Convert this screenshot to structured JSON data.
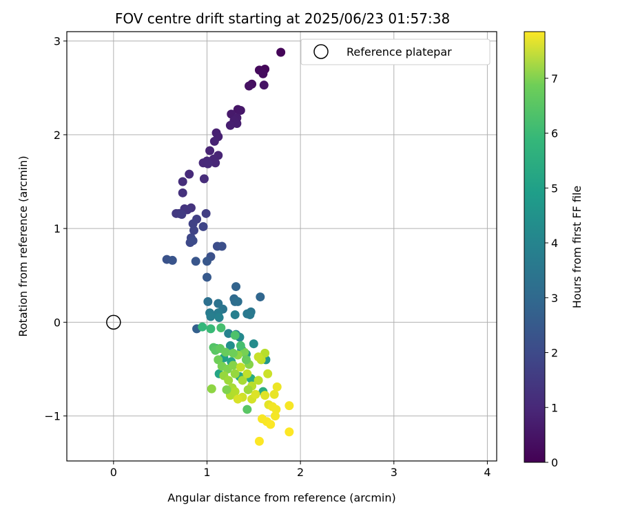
{
  "chart_data": {
    "type": "scatter",
    "title": "FOV centre drift starting at 2025/06/23 01:57:38",
    "xlabel": "Angular distance from reference (arcmin)",
    "ylabel": "Rotation from reference (arcmin)",
    "xlim": [
      -0.5,
      4.1
    ],
    "ylim": [
      -1.48,
      3.1
    ],
    "xticks": [
      0,
      1,
      2,
      3,
      4
    ],
    "yticks": [
      -1,
      0,
      1,
      2,
      3
    ],
    "xtick_labels": [
      "0",
      "1",
      "2",
      "3",
      "4"
    ],
    "ytick_labels": [
      "−1",
      "0",
      "1",
      "2",
      "3"
    ],
    "grid": true,
    "colormap": "viridis",
    "colorbar": {
      "label": "Hours from first FF file",
      "range": [
        0,
        7.85
      ],
      "ticks": [
        0,
        1,
        2,
        3,
        4,
        5,
        6,
        7
      ],
      "tick_labels": [
        "0",
        "1",
        "2",
        "3",
        "4",
        "5",
        "6",
        "7"
      ]
    },
    "legend": {
      "position": "top-right",
      "entries": [
        {
          "label": "Reference platepar",
          "marker": "open-circle"
        }
      ]
    },
    "reference_point": {
      "x": 0,
      "y": 0
    },
    "points": [
      {
        "x": 1.79,
        "y": 2.88,
        "h": 0.1
      },
      {
        "x": 1.62,
        "y": 2.7,
        "h": 0.15
      },
      {
        "x": 1.56,
        "y": 2.69,
        "h": 0.2
      },
      {
        "x": 1.6,
        "y": 2.65,
        "h": 0.25
      },
      {
        "x": 1.48,
        "y": 2.54,
        "h": 0.3
      },
      {
        "x": 1.45,
        "y": 2.52,
        "h": 0.35
      },
      {
        "x": 1.61,
        "y": 2.53,
        "h": 0.4
      },
      {
        "x": 1.33,
        "y": 2.27,
        "h": 0.45
      },
      {
        "x": 1.36,
        "y": 2.26,
        "h": 0.5
      },
      {
        "x": 1.26,
        "y": 2.22,
        "h": 0.55
      },
      {
        "x": 1.32,
        "y": 2.18,
        "h": 0.6
      },
      {
        "x": 1.29,
        "y": 2.15,
        "h": 0.62
      },
      {
        "x": 1.32,
        "y": 2.12,
        "h": 0.65
      },
      {
        "x": 1.25,
        "y": 2.1,
        "h": 0.68
      },
      {
        "x": 1.1,
        "y": 2.02,
        "h": 0.7
      },
      {
        "x": 1.12,
        "y": 1.98,
        "h": 0.72
      },
      {
        "x": 1.08,
        "y": 1.93,
        "h": 0.75
      },
      {
        "x": 1.03,
        "y": 1.83,
        "h": 0.78
      },
      {
        "x": 1.12,
        "y": 1.78,
        "h": 0.8
      },
      {
        "x": 1.07,
        "y": 1.74,
        "h": 0.82
      },
      {
        "x": 1.09,
        "y": 1.7,
        "h": 0.85
      },
      {
        "x": 1.0,
        "y": 1.72,
        "h": 0.88
      },
      {
        "x": 0.96,
        "y": 1.7,
        "h": 0.9
      },
      {
        "x": 1.01,
        "y": 1.69,
        "h": 0.92
      },
      {
        "x": 0.81,
        "y": 1.58,
        "h": 0.95
      },
      {
        "x": 0.97,
        "y": 1.53,
        "h": 1.0
      },
      {
        "x": 0.74,
        "y": 1.5,
        "h": 1.05
      },
      {
        "x": 0.74,
        "y": 1.38,
        "h": 1.1
      },
      {
        "x": 0.83,
        "y": 1.22,
        "h": 1.15
      },
      {
        "x": 0.76,
        "y": 1.21,
        "h": 1.2
      },
      {
        "x": 0.79,
        "y": 1.2,
        "h": 1.25
      },
      {
        "x": 0.7,
        "y": 1.16,
        "h": 1.3
      },
      {
        "x": 0.67,
        "y": 1.16,
        "h": 1.35
      },
      {
        "x": 0.73,
        "y": 1.15,
        "h": 1.4
      },
      {
        "x": 0.99,
        "y": 1.16,
        "h": 1.45
      },
      {
        "x": 0.89,
        "y": 1.1,
        "h": 1.5
      },
      {
        "x": 0.85,
        "y": 1.05,
        "h": 1.55
      },
      {
        "x": 0.86,
        "y": 0.98,
        "h": 1.6
      },
      {
        "x": 0.96,
        "y": 1.02,
        "h": 1.65
      },
      {
        "x": 0.83,
        "y": 0.9,
        "h": 1.7
      },
      {
        "x": 0.82,
        "y": 0.85,
        "h": 1.75
      },
      {
        "x": 0.85,
        "y": 0.87,
        "h": 1.8
      },
      {
        "x": 1.11,
        "y": 0.81,
        "h": 1.85
      },
      {
        "x": 1.16,
        "y": 0.81,
        "h": 1.9
      },
      {
        "x": 1.04,
        "y": 0.7,
        "h": 1.95
      },
      {
        "x": 0.57,
        "y": 0.67,
        "h": 2.0
      },
      {
        "x": 0.63,
        "y": 0.66,
        "h": 2.05
      },
      {
        "x": 0.88,
        "y": 0.65,
        "h": 2.1
      },
      {
        "x": 1.0,
        "y": 0.65,
        "h": 2.15
      },
      {
        "x": 1.0,
        "y": 0.48,
        "h": 2.2
      },
      {
        "x": 1.31,
        "y": 0.38,
        "h": 2.5
      },
      {
        "x": 1.57,
        "y": 0.27,
        "h": 2.6
      },
      {
        "x": 1.29,
        "y": 0.25,
        "h": 2.7
      },
      {
        "x": 1.3,
        "y": 0.22,
        "h": 2.8
      },
      {
        "x": 1.33,
        "y": 0.22,
        "h": 2.85
      },
      {
        "x": 1.01,
        "y": 0.22,
        "h": 2.9
      },
      {
        "x": 1.12,
        "y": 0.2,
        "h": 3.0
      },
      {
        "x": 1.17,
        "y": 0.14,
        "h": 3.05
      },
      {
        "x": 1.47,
        "y": 0.11,
        "h": 3.1
      },
      {
        "x": 1.43,
        "y": 0.09,
        "h": 3.15
      },
      {
        "x": 1.46,
        "y": 0.08,
        "h": 3.2
      },
      {
        "x": 1.03,
        "y": 0.1,
        "h": 3.25
      },
      {
        "x": 1.12,
        "y": 0.1,
        "h": 3.3
      },
      {
        "x": 1.04,
        "y": 0.06,
        "h": 3.35
      },
      {
        "x": 1.3,
        "y": 0.08,
        "h": 3.4
      },
      {
        "x": 1.13,
        "y": 0.05,
        "h": 3.45
      },
      {
        "x": 0.89,
        "y": -0.07,
        "h": 2.4
      },
      {
        "x": 1.23,
        "y": -0.12,
        "h": 3.5
      },
      {
        "x": 1.31,
        "y": -0.13,
        "h": 3.6
      },
      {
        "x": 1.35,
        "y": -0.16,
        "h": 3.7
      },
      {
        "x": 1.5,
        "y": -0.23,
        "h": 3.8
      },
      {
        "x": 1.25,
        "y": -0.25,
        "h": 3.9
      },
      {
        "x": 1.37,
        "y": -0.29,
        "h": 4.0
      },
      {
        "x": 1.63,
        "y": -0.4,
        "h": 4.1
      },
      {
        "x": 1.42,
        "y": -0.34,
        "h": 4.2
      },
      {
        "x": 1.1,
        "y": -0.28,
        "h": 4.3
      },
      {
        "x": 1.18,
        "y": -0.38,
        "h": 4.4
      },
      {
        "x": 1.26,
        "y": -0.42,
        "h": 4.5
      },
      {
        "x": 1.13,
        "y": -0.55,
        "h": 4.6
      },
      {
        "x": 1.35,
        "y": -0.58,
        "h": 4.7
      },
      {
        "x": 1.47,
        "y": -0.6,
        "h": 4.8
      },
      {
        "x": 1.6,
        "y": -0.74,
        "h": 4.9
      },
      {
        "x": 0.95,
        "y": -0.05,
        "h": 5.2
      },
      {
        "x": 1.04,
        "y": -0.07,
        "h": 5.3
      },
      {
        "x": 1.15,
        "y": -0.06,
        "h": 5.5
      },
      {
        "x": 1.3,
        "y": -0.14,
        "h": 5.6
      },
      {
        "x": 1.07,
        "y": -0.27,
        "h": 5.7
      },
      {
        "x": 1.09,
        "y": -0.3,
        "h": 5.8
      },
      {
        "x": 1.14,
        "y": -0.28,
        "h": 5.9
      },
      {
        "x": 1.2,
        "y": -0.32,
        "h": 6.0
      },
      {
        "x": 1.12,
        "y": -0.4,
        "h": 6.1
      },
      {
        "x": 1.16,
        "y": -0.47,
        "h": 6.2
      },
      {
        "x": 1.22,
        "y": -0.5,
        "h": 6.3
      },
      {
        "x": 1.28,
        "y": -0.46,
        "h": 6.4
      },
      {
        "x": 1.05,
        "y": -0.71,
        "h": 6.5
      },
      {
        "x": 1.18,
        "y": -0.57,
        "h": 6.6
      },
      {
        "x": 1.23,
        "y": -0.62,
        "h": 6.7
      },
      {
        "x": 1.27,
        "y": -0.7,
        "h": 6.8
      },
      {
        "x": 1.43,
        "y": -0.93,
        "h": 5.8
      },
      {
        "x": 1.4,
        "y": -0.32,
        "h": 6.2
      },
      {
        "x": 1.45,
        "y": -0.45,
        "h": 6.4
      },
      {
        "x": 1.33,
        "y": -0.35,
        "h": 6.5
      },
      {
        "x": 1.3,
        "y": -0.55,
        "h": 6.6
      },
      {
        "x": 1.38,
        "y": -0.62,
        "h": 6.8
      },
      {
        "x": 1.25,
        "y": -0.78,
        "h": 6.9
      },
      {
        "x": 1.3,
        "y": -0.74,
        "h": 6.95
      },
      {
        "x": 1.48,
        "y": -0.68,
        "h": 7.0
      },
      {
        "x": 1.55,
        "y": -0.62,
        "h": 7.05
      },
      {
        "x": 1.43,
        "y": -0.55,
        "h": 7.1
      },
      {
        "x": 1.36,
        "y": -0.48,
        "h": 7.15
      },
      {
        "x": 1.62,
        "y": -0.33,
        "h": 7.0
      },
      {
        "x": 1.58,
        "y": -0.4,
        "h": 7.1
      },
      {
        "x": 1.55,
        "y": -0.37,
        "h": 7.2
      },
      {
        "x": 1.65,
        "y": -0.55,
        "h": 7.25
      },
      {
        "x": 1.38,
        "y": -0.8,
        "h": 7.3
      },
      {
        "x": 1.48,
        "y": -0.82,
        "h": 7.35
      },
      {
        "x": 1.33,
        "y": -0.82,
        "h": 7.4
      },
      {
        "x": 1.52,
        "y": -0.77,
        "h": 7.45
      },
      {
        "x": 1.62,
        "y": -0.78,
        "h": 7.5
      },
      {
        "x": 1.66,
        "y": -0.88,
        "h": 7.55
      },
      {
        "x": 1.72,
        "y": -0.77,
        "h": 7.6
      },
      {
        "x": 1.75,
        "y": -0.69,
        "h": 7.65
      },
      {
        "x": 1.7,
        "y": -0.9,
        "h": 7.7
      },
      {
        "x": 1.74,
        "y": -0.93,
        "h": 7.72
      },
      {
        "x": 1.73,
        "y": -1.0,
        "h": 7.74
      },
      {
        "x": 1.88,
        "y": -0.89,
        "h": 7.76
      },
      {
        "x": 1.59,
        "y": -1.03,
        "h": 7.78
      },
      {
        "x": 1.64,
        "y": -1.06,
        "h": 7.8
      },
      {
        "x": 1.68,
        "y": -1.09,
        "h": 7.82
      },
      {
        "x": 1.56,
        "y": -1.27,
        "h": 7.84
      },
      {
        "x": 1.88,
        "y": -1.17,
        "h": 7.85
      },
      {
        "x": 1.42,
        "y": -0.4,
        "h": 6.0
      },
      {
        "x": 1.36,
        "y": -0.25,
        "h": 5.5
      },
      {
        "x": 1.28,
        "y": -0.33,
        "h": 6.1
      },
      {
        "x": 1.21,
        "y": -0.72,
        "h": 6.3
      },
      {
        "x": 1.44,
        "y": -0.72,
        "h": 6.7
      }
    ]
  }
}
